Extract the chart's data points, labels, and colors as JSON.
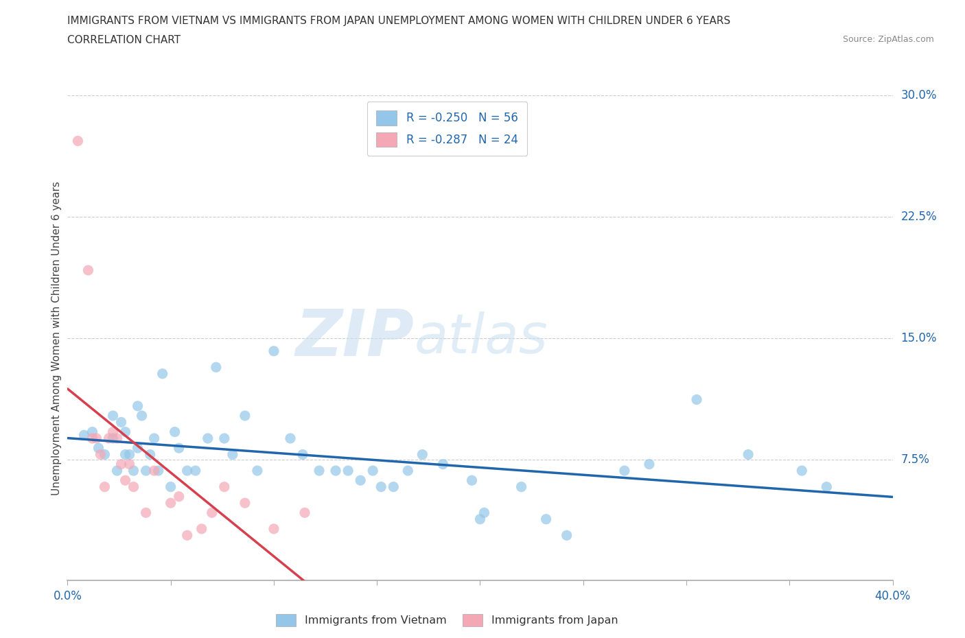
{
  "title_line1": "IMMIGRANTS FROM VIETNAM VS IMMIGRANTS FROM JAPAN UNEMPLOYMENT AMONG WOMEN WITH CHILDREN UNDER 6 YEARS",
  "title_line2": "CORRELATION CHART",
  "source_text": "Source: ZipAtlas.com",
  "ylabel": "Unemployment Among Women with Children Under 6 years",
  "xmin": 0.0,
  "xmax": 0.4,
  "ymin": 0.0,
  "ymax": 0.3,
  "xticks": [
    0.0,
    0.05,
    0.1,
    0.15,
    0.2,
    0.25,
    0.3,
    0.35,
    0.4
  ],
  "yticks": [
    0.0,
    0.075,
    0.15,
    0.225,
    0.3
  ],
  "ytick_labels": [
    "",
    "7.5%",
    "15.0%",
    "22.5%",
    "30.0%"
  ],
  "xtick_labels": [
    "0.0%",
    "",
    "",
    "",
    "",
    "",
    "",
    "",
    "40.0%"
  ],
  "legend_r1": "R = -0.250",
  "legend_n1": "N = 56",
  "legend_r2": "R = -0.287",
  "legend_n2": "N = 24",
  "color_vietnam": "#93c6e8",
  "color_japan": "#f4a7b5",
  "trend_color_vietnam": "#2166ac",
  "trend_color_japan": "#d6404e",
  "watermark_zip": "ZIP",
  "watermark_atlas": "atlas",
  "vietnam_x": [
    0.008,
    0.012,
    0.015,
    0.018,
    0.022,
    0.024,
    0.022,
    0.026,
    0.028,
    0.028,
    0.03,
    0.032,
    0.034,
    0.034,
    0.036,
    0.038,
    0.04,
    0.042,
    0.044,
    0.046,
    0.05,
    0.052,
    0.054,
    0.058,
    0.062,
    0.068,
    0.072,
    0.076,
    0.08,
    0.086,
    0.092,
    0.1,
    0.108,
    0.114,
    0.122,
    0.13,
    0.136,
    0.142,
    0.148,
    0.152,
    0.158,
    0.165,
    0.172,
    0.182,
    0.196,
    0.2,
    0.202,
    0.22,
    0.232,
    0.242,
    0.27,
    0.282,
    0.305,
    0.33,
    0.356,
    0.368
  ],
  "vietnam_y": [
    0.09,
    0.092,
    0.082,
    0.078,
    0.102,
    0.068,
    0.088,
    0.098,
    0.078,
    0.092,
    0.078,
    0.068,
    0.108,
    0.082,
    0.102,
    0.068,
    0.078,
    0.088,
    0.068,
    0.128,
    0.058,
    0.092,
    0.082,
    0.068,
    0.068,
    0.088,
    0.132,
    0.088,
    0.078,
    0.102,
    0.068,
    0.142,
    0.088,
    0.078,
    0.068,
    0.068,
    0.068,
    0.062,
    0.068,
    0.058,
    0.058,
    0.068,
    0.078,
    0.072,
    0.062,
    0.038,
    0.042,
    0.058,
    0.038,
    0.028,
    0.068,
    0.072,
    0.112,
    0.078,
    0.068,
    0.058
  ],
  "japan_x": [
    0.005,
    0.01,
    0.012,
    0.014,
    0.016,
    0.018,
    0.02,
    0.022,
    0.024,
    0.026,
    0.028,
    0.03,
    0.032,
    0.038,
    0.042,
    0.05,
    0.054,
    0.058,
    0.065,
    0.07,
    0.076,
    0.086,
    0.1,
    0.115
  ],
  "japan_y": [
    0.272,
    0.192,
    0.088,
    0.088,
    0.078,
    0.058,
    0.088,
    0.092,
    0.088,
    0.072,
    0.062,
    0.072,
    0.058,
    0.042,
    0.068,
    0.048,
    0.052,
    0.028,
    0.032,
    0.042,
    0.058,
    0.048,
    0.032,
    0.042
  ]
}
